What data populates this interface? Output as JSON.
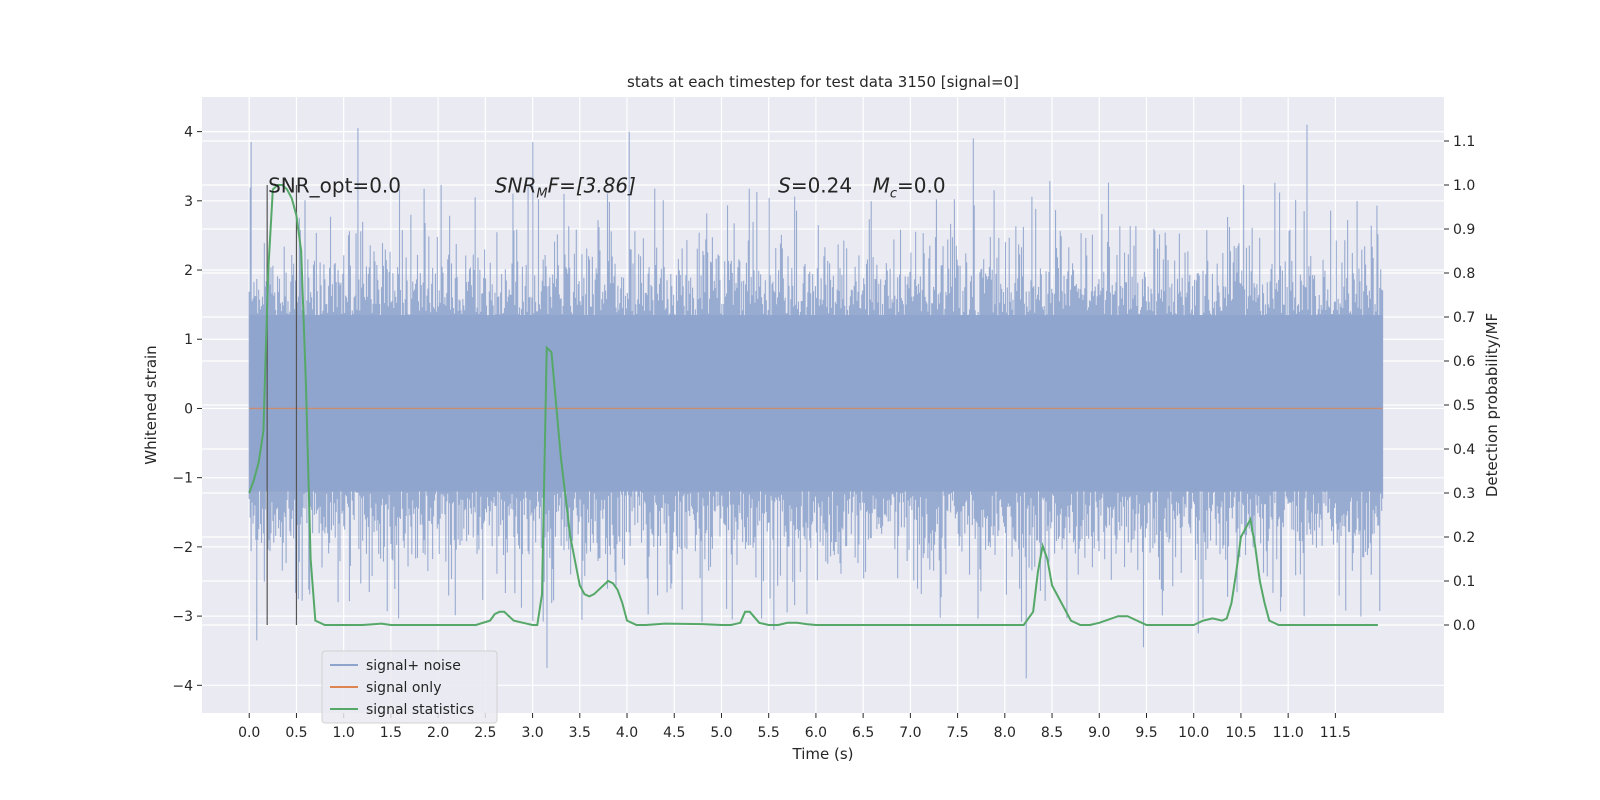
{
  "chart_data": {
    "type": "line",
    "title": "stats at each timestep for test data 3150 [signal=0]",
    "xlabel": "Time (s)",
    "ylabel_left": "Whitened strain",
    "ylabel_right": "Detection probability/MF",
    "xlim": [
      -0.5,
      12.65
    ],
    "ylim_left": [
      -4.4,
      4.5
    ],
    "ylim_right": [
      -0.2,
      1.2
    ],
    "x_ticks": [
      "0.0",
      "0.5",
      "1.0",
      "1.5",
      "2.0",
      "2.5",
      "3.0",
      "3.5",
      "4.0",
      "4.5",
      "5.0",
      "5.5",
      "6.0",
      "6.5",
      "7.0",
      "7.5",
      "8.0",
      "8.5",
      "9.0",
      "9.5",
      "10.0",
      "10.5",
      "11.0",
      "11.5"
    ],
    "y_left_ticks": [
      "4",
      "3",
      "2",
      "1",
      "0",
      "−1",
      "−2",
      "−3",
      "−4"
    ],
    "y_right_ticks": [
      "1.1",
      "1.0",
      "0.9",
      "0.8",
      "0.7",
      "0.6",
      "0.5",
      "0.4",
      "0.3",
      "0.2",
      "0.1",
      "0.0"
    ],
    "grid": true,
    "legend_placement": "lower-left",
    "annotations": {
      "snr_opt": "SNR_opt=0.0",
      "snr_mf_prefix": "SNR",
      "snr_mf_sub": "M",
      "snr_mf_suffix": "F=[3.86]",
      "s_label": "S",
      "s_value": "=0.24",
      "mc_label": "M",
      "mc_sub": "c",
      "mc_value": "=0.0"
    },
    "vertical_markers": [
      0.19,
      0.5
    ],
    "series": [
      {
        "name": "signal+ noise",
        "color": "#8fa4cc",
        "x_range": [
          0.0,
          12.0
        ],
        "core_band": [
          -1.2,
          1.35
        ],
        "extreme_range": [
          -3.9,
          4.1
        ],
        "highlights": [
          [
            0.02,
            3.85
          ],
          [
            1.15,
            4.05
          ],
          [
            3.0,
            3.85
          ],
          [
            4.02,
            4.0
          ],
          [
            7.67,
            3.9
          ],
          [
            11.2,
            4.1
          ],
          [
            0.08,
            -3.35
          ],
          [
            3.15,
            -3.75
          ],
          [
            8.23,
            -3.9
          ],
          [
            9.47,
            -3.45
          ],
          [
            5.55,
            -3.2
          ],
          [
            10.05,
            -3.25
          ]
        ]
      },
      {
        "name": "signal only",
        "color": "#dd8452",
        "x": [
          0.0,
          12.0
        ],
        "y": [
          0.0,
          0.0
        ]
      },
      {
        "name": "signal statistics",
        "color": "#55a868",
        "axis": "right",
        "x": [
          0.0,
          0.05,
          0.1,
          0.15,
          0.2,
          0.25,
          0.3,
          0.35,
          0.4,
          0.45,
          0.5,
          0.55,
          0.6,
          0.65,
          0.7,
          0.8,
          0.9,
          1.0,
          1.2,
          1.4,
          1.5,
          1.6,
          2.0,
          2.4,
          2.55,
          2.6,
          2.65,
          2.7,
          2.8,
          2.9,
          3.0,
          3.05,
          3.1,
          3.15,
          3.2,
          3.25,
          3.3,
          3.4,
          3.5,
          3.55,
          3.6,
          3.65,
          3.7,
          3.75,
          3.8,
          3.85,
          3.9,
          3.95,
          4.0,
          4.05,
          4.1,
          4.2,
          4.4,
          4.8,
          5.0,
          5.1,
          5.2,
          5.25,
          5.3,
          5.4,
          5.5,
          5.6,
          5.7,
          5.8,
          5.9,
          6.0,
          6.5,
          7.0,
          7.5,
          8.0,
          8.2,
          8.3,
          8.35,
          8.4,
          8.45,
          8.5,
          8.6,
          8.7,
          8.8,
          8.9,
          9.0,
          9.2,
          9.3,
          9.4,
          9.5,
          9.6,
          9.8,
          10.0,
          10.1,
          10.2,
          10.3,
          10.35,
          10.4,
          10.45,
          10.5,
          10.55,
          10.6,
          10.65,
          10.7,
          10.75,
          10.8,
          10.9,
          11.0,
          11.5,
          11.95
        ],
        "y": [
          0.3,
          0.33,
          0.37,
          0.44,
          0.8,
          0.99,
          1.0,
          1.0,
          0.99,
          0.97,
          0.93,
          0.85,
          0.55,
          0.15,
          0.01,
          0.0,
          0.0,
          0.0,
          0.0,
          0.003,
          0.0,
          0.0,
          0.0,
          0.0,
          0.01,
          0.025,
          0.03,
          0.03,
          0.01,
          0.005,
          0.0,
          0.0,
          0.07,
          0.63,
          0.62,
          0.5,
          0.38,
          0.2,
          0.09,
          0.07,
          0.065,
          0.07,
          0.08,
          0.09,
          0.1,
          0.095,
          0.08,
          0.05,
          0.01,
          0.005,
          0.0,
          0.0,
          0.003,
          0.002,
          0.0,
          0.0,
          0.005,
          0.03,
          0.03,
          0.005,
          0.0,
          0.0,
          0.005,
          0.005,
          0.002,
          0.0,
          0.0,
          0.0,
          0.0,
          0.0,
          0.0,
          0.03,
          0.12,
          0.18,
          0.15,
          0.09,
          0.05,
          0.01,
          0.0,
          0.0,
          0.005,
          0.02,
          0.02,
          0.01,
          0.0,
          0.0,
          0.0,
          0.0,
          0.01,
          0.015,
          0.01,
          0.015,
          0.05,
          0.12,
          0.2,
          0.22,
          0.24,
          0.18,
          0.1,
          0.05,
          0.01,
          0.0,
          0.0,
          0.0,
          0.0
        ]
      }
    ]
  }
}
